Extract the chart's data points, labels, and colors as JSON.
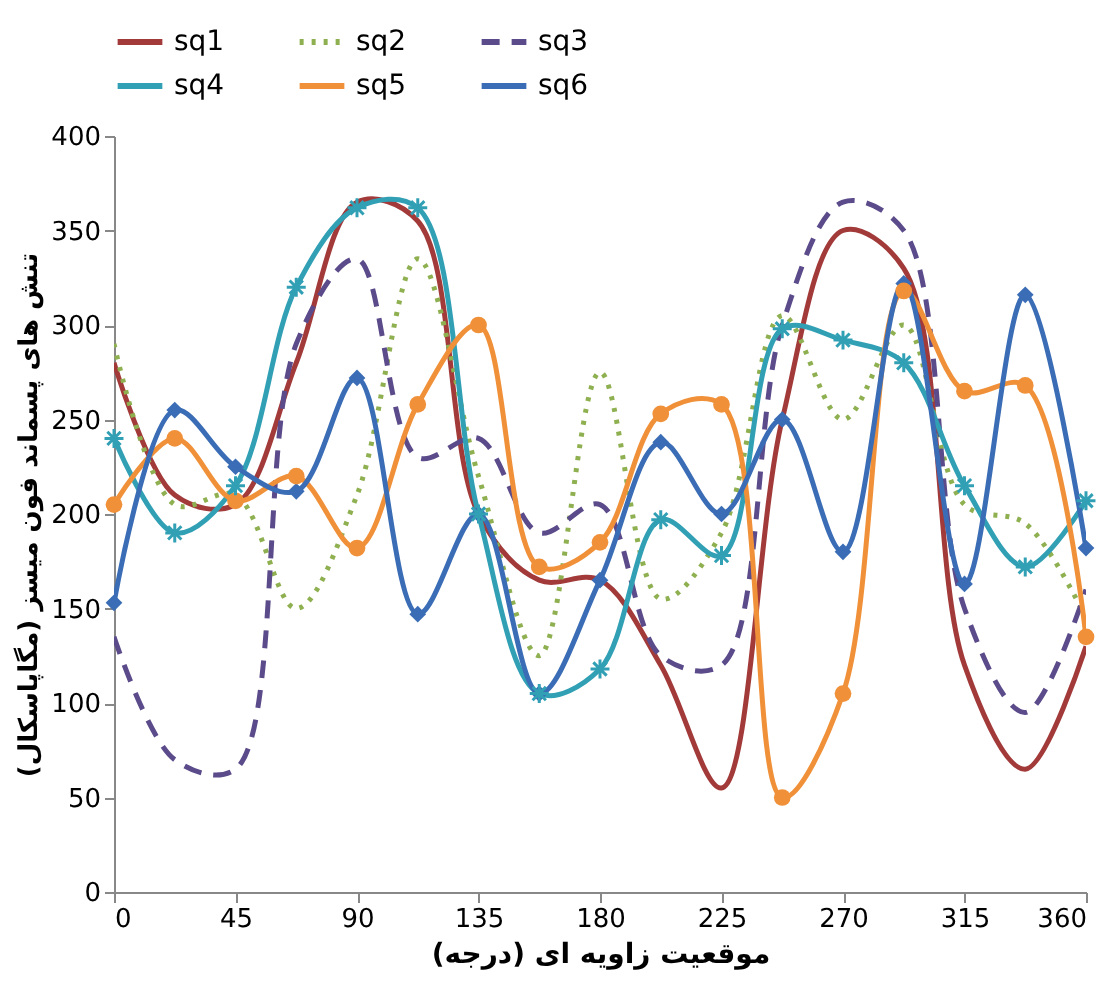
{
  "chart_data": {
    "type": "line",
    "xlabel": "موقعیت زاویه ای (درجه)",
    "ylabel": "تنش های پسماند فون میسز (مگاپاسکال)",
    "x": [
      0,
      22.5,
      45,
      67.5,
      90,
      112.5,
      135,
      157.5,
      180,
      202.5,
      225,
      247.5,
      270,
      292.5,
      315,
      337.5,
      360
    ],
    "xlim": [
      0,
      360
    ],
    "xticks": [
      0,
      45,
      90,
      135,
      180,
      225,
      270,
      315,
      360
    ],
    "ylim": [
      0,
      400
    ],
    "yticks": [
      0,
      50,
      100,
      150,
      200,
      250,
      300,
      350,
      400
    ],
    "grid": false,
    "legend": "top",
    "series": [
      {
        "name": "sq1",
        "color": "#a33a3a",
        "line_style": "solid",
        "marker": "none",
        "values": [
          280,
          210,
          205,
          280,
          365,
          355,
          200,
          165,
          165,
          120,
          55,
          250,
          350,
          330,
          120,
          65,
          130
        ]
      },
      {
        "name": "sq2",
        "color": "#8fb050",
        "line_style": "dotted",
        "marker": "none",
        "values": [
          290,
          205,
          210,
          150,
          210,
          335,
          220,
          125,
          275,
          155,
          190,
          305,
          250,
          300,
          205,
          195,
          145
        ]
      },
      {
        "name": "sq3",
        "color": "#5b4b8a",
        "line_style": "dashed",
        "marker": "none",
        "values": [
          135,
          70,
          65,
          290,
          335,
          230,
          240,
          190,
          205,
          125,
          120,
          300,
          365,
          350,
          150,
          95,
          160
        ]
      },
      {
        "name": "sq4",
        "color": "#31a0b5",
        "line_style": "solid",
        "marker": "cross",
        "values": [
          240,
          190,
          215,
          320,
          362,
          362,
          200,
          105,
          118,
          197,
          178,
          298,
          292,
          280,
          215,
          172,
          207
        ]
      },
      {
        "name": "sq5",
        "color": "#f0913a",
        "line_style": "solid",
        "marker": "circle",
        "values": [
          205,
          240,
          207,
          220,
          182,
          258,
          300,
          172,
          185,
          253,
          258,
          50,
          105,
          318,
          265,
          268,
          135
        ]
      },
      {
        "name": "sq6",
        "color": "#3a6db5",
        "line_style": "solid",
        "marker": "diamond",
        "values": [
          153,
          255,
          225,
          212,
          272,
          147,
          200,
          105,
          165,
          238,
          200,
          250,
          180,
          322,
          163,
          316,
          182
        ]
      }
    ]
  }
}
